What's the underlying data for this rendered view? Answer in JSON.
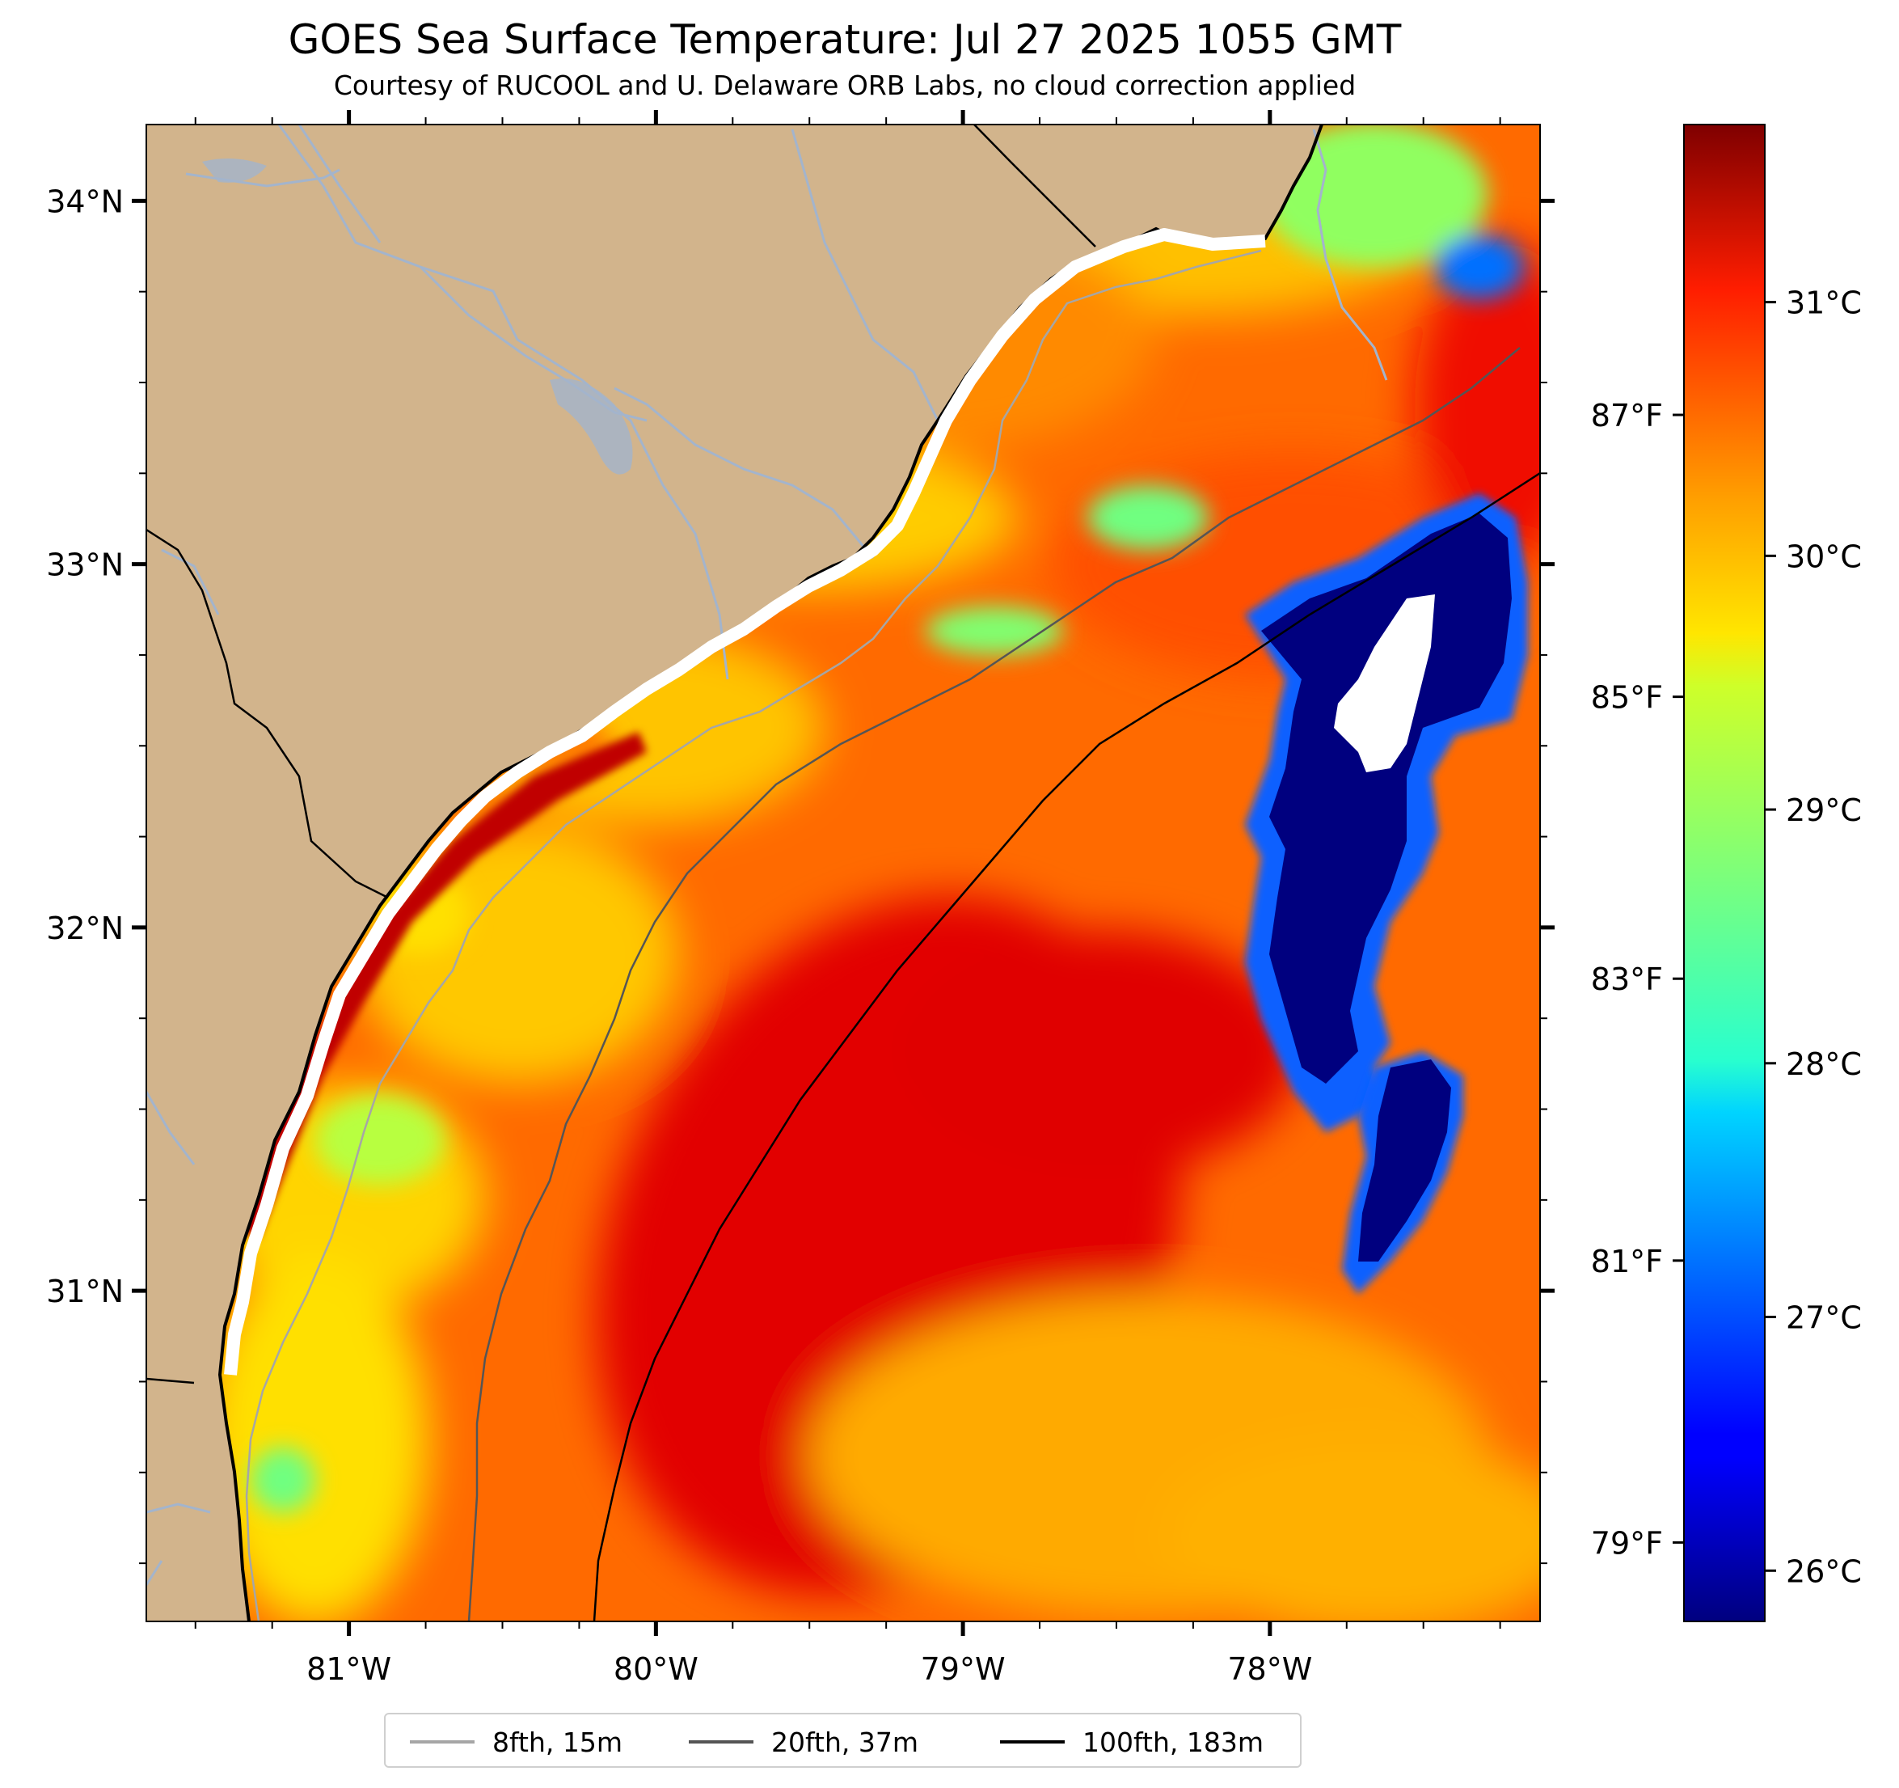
{
  "title": "GOES Sea Surface Temperature: Jul 27 2025 1055 GMT",
  "subtitle": "Courtesy of RUCOOL and U. Delaware ORB Labs, no cloud correction applied",
  "map": {
    "lon_range": [
      -81.66,
      -77.12
    ],
    "lat_range": [
      30.09,
      34.21
    ],
    "x_ticks": [
      "81°W",
      "80°W",
      "79°W",
      "78°W"
    ],
    "y_ticks": [
      "34°N",
      "33°N",
      "32°N",
      "31°N"
    ],
    "colors": {
      "land": "#d2b48c",
      "rivers": "#a3b4cc",
      "coastline": "#000000",
      "no_data": "#ffffff"
    }
  },
  "colorbar": {
    "colormap": "jet",
    "range_c": [
      25.8,
      31.7
    ],
    "celsius_ticks": [
      "31°C",
      "30°C",
      "29°C",
      "28°C",
      "27°C",
      "26°C"
    ],
    "fahrenheit_ticks": [
      "87°F",
      "85°F",
      "83°F",
      "81°F",
      "79°F"
    ]
  },
  "legend": {
    "items": [
      {
        "label": "8fth, 15m",
        "color": "#a6a6a6"
      },
      {
        "label": "20fth, 37m",
        "color": "#555555"
      },
      {
        "label": "100fth, 183m",
        "color": "#000000"
      }
    ]
  }
}
